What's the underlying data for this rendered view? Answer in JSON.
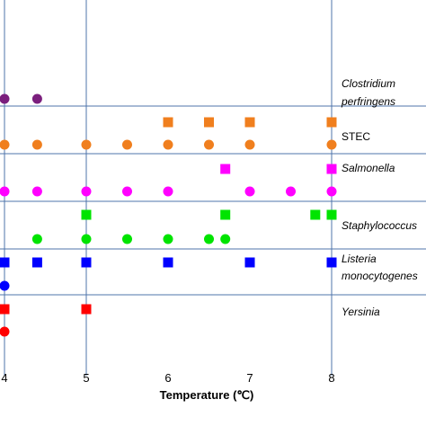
{
  "chart_data": {
    "type": "scatter",
    "xlabel": "Temperature (℃)",
    "xlim": [
      4,
      8
    ],
    "x_ticks": [
      "4",
      "5",
      "6",
      "7",
      "8"
    ],
    "grid": "horizontal lines separating pathogen bands; vertical lines at x = 4, 5, 8",
    "legend": "none; pathogen names printed at right of each band",
    "pathogens": [
      {
        "label_lines": [
          "Clostridium",
          "perfringens"
        ],
        "italic": true
      },
      {
        "label_lines": [
          "STEC"
        ],
        "italic": false
      },
      {
        "label_lines": [
          "Salmonella"
        ],
        "italic": true
      },
      {
        "label_lines": [
          "Staphylococcus"
        ],
        "italic": true
      },
      {
        "label_lines": [
          "Listeria",
          "monocytogenes"
        ],
        "italic": true
      },
      {
        "label_lines": [
          "Yersinia"
        ],
        "italic": true
      }
    ],
    "series": [
      {
        "pathogen_index": 0,
        "marker": "circle",
        "color": "#7b1f7d",
        "x": [
          4,
          4.4
        ]
      },
      {
        "pathogen_index": 1,
        "marker": "square",
        "color": "#f07f1e",
        "x": [
          6,
          6.5,
          7,
          8
        ]
      },
      {
        "pathogen_index": 1,
        "marker": "circle",
        "color": "#f07f1e",
        "x": [
          4,
          4.4,
          5,
          5.5,
          6,
          6.5,
          7,
          8
        ]
      },
      {
        "pathogen_index": 2,
        "marker": "square",
        "color": "#ff00ff",
        "x": [
          6.7,
          8
        ]
      },
      {
        "pathogen_index": 2,
        "marker": "circle",
        "color": "#ff00ff",
        "x": [
          4,
          4.4,
          5,
          5.5,
          6,
          7,
          7.5,
          8
        ]
      },
      {
        "pathogen_index": 3,
        "marker": "square",
        "color": "#00e400",
        "x": [
          5,
          6.7,
          7.8,
          8
        ]
      },
      {
        "pathogen_index": 3,
        "marker": "circle",
        "color": "#00e400",
        "x": [
          4.4,
          5,
          5.5,
          6,
          6.5,
          6.7
        ]
      },
      {
        "pathogen_index": 4,
        "marker": "square",
        "color": "#0000ff",
        "x": [
          4,
          4.4,
          5,
          6,
          7,
          8
        ]
      },
      {
        "pathogen_index": 4,
        "marker": "circle",
        "color": "#0000ff",
        "x": [
          4
        ]
      },
      {
        "pathogen_index": 5,
        "marker": "square",
        "color": "#ff0000",
        "x": [
          4,
          5
        ]
      },
      {
        "pathogen_index": 5,
        "marker": "circle",
        "color": "#ff0000",
        "x": [
          4
        ]
      }
    ],
    "colors": {
      "grid": "#4f74ab"
    }
  }
}
